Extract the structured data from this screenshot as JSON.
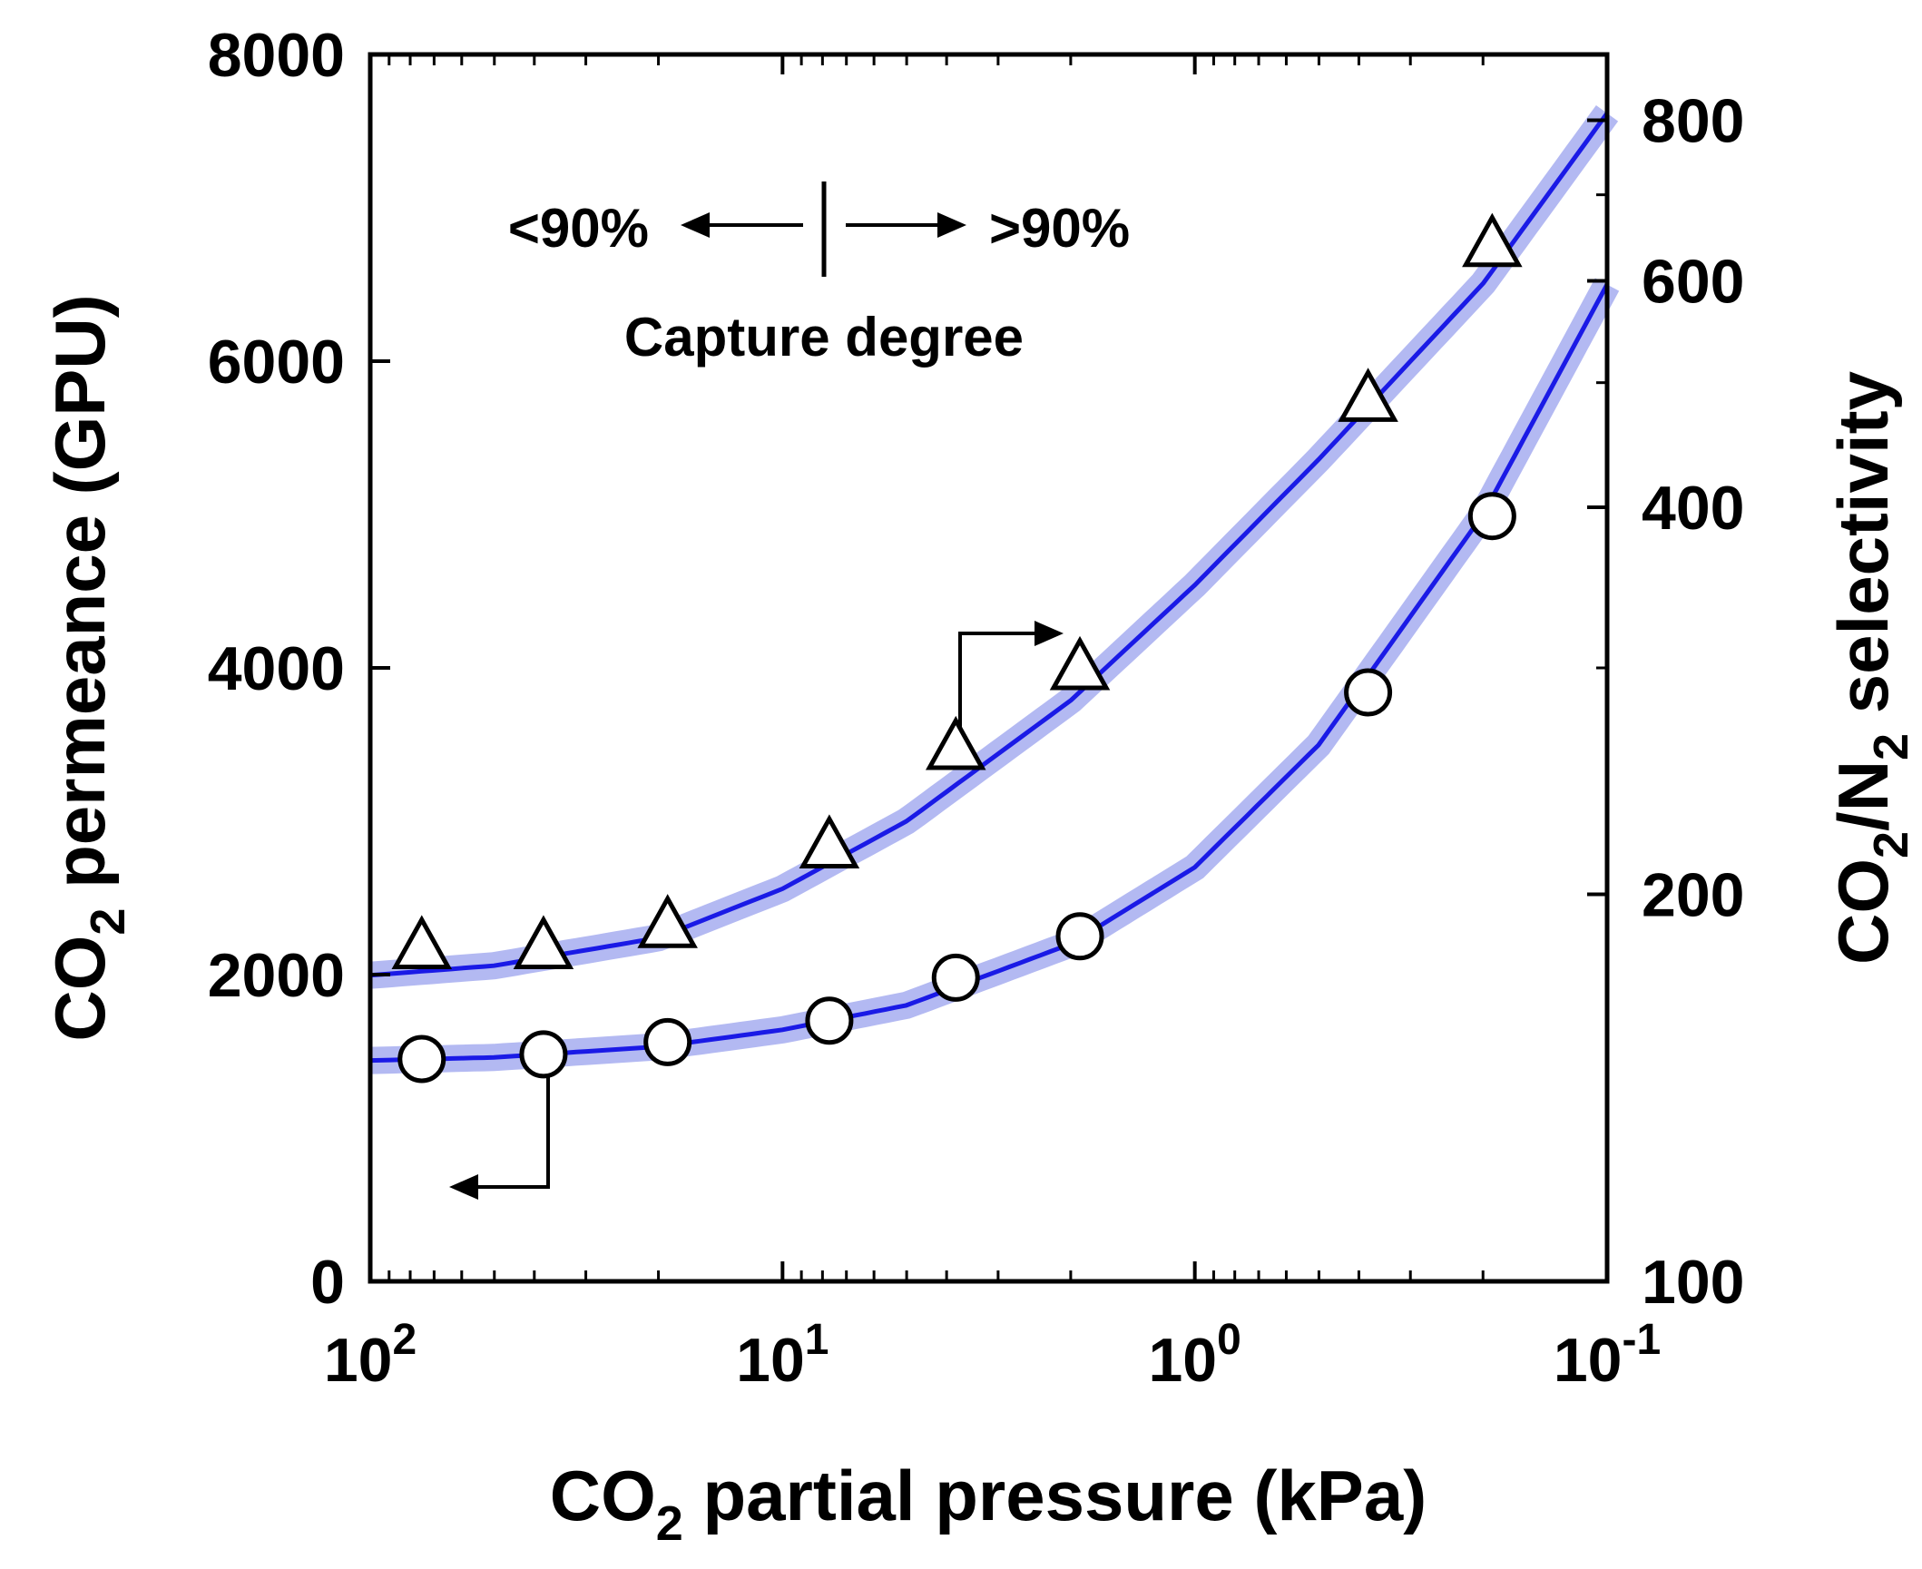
{
  "chart_data": {
    "type": "scatter",
    "xlabel": {
      "main": "CO",
      "sub": "2",
      "rest": " partial pressure (kPa)"
    },
    "ylabel_left": {
      "main": "CO",
      "sub": "2",
      "rest": " permeance (GPU)"
    },
    "ylabel_right": {
      "main": "CO",
      "sub": "2",
      "mid": "/N",
      "sub2": "2",
      "rest": " selectivity"
    },
    "x_scale": "log",
    "x_reversed": true,
    "xlim": [
      100,
      0.1
    ],
    "x_ticks": [
      {
        "value": 100,
        "base": "10",
        "exp": "2"
      },
      {
        "value": 10,
        "base": "10",
        "exp": "1"
      },
      {
        "value": 1,
        "base": "10",
        "exp": "0"
      },
      {
        "value": 0.1,
        "base": "10",
        "exp": "-1"
      }
    ],
    "ylim_left": [
      0,
      8000
    ],
    "y_ticks_left": [
      "0",
      "2000",
      "4000",
      "6000",
      "8000"
    ],
    "y_scale_right": "log",
    "ylim_right": [
      100,
      900
    ],
    "y_ticks_right": [
      "100",
      "200",
      "400",
      "600",
      "800"
    ],
    "series": [
      {
        "name": "CO2 permeance",
        "axis": "left",
        "marker": "circle",
        "x": [
          75,
          38,
          19,
          7.7,
          3.8,
          1.9,
          0.38,
          0.19
        ],
        "y": [
          1450,
          1480,
          1560,
          1700,
          1980,
          2250,
          3840,
          4990
        ]
      },
      {
        "name": "CO2/N2 selectivity",
        "axis": "right",
        "marker": "triangle",
        "x": [
          75,
          38,
          19,
          7.7,
          3.8,
          1.9,
          0.38,
          0.19
        ],
        "y": [
          182,
          182,
          189,
          218,
          260,
          300,
          485,
          640
        ]
      }
    ],
    "fits": [
      {
        "name": "permeance fit",
        "axis": "left",
        "color": "#1a1ae6",
        "band_color": "#b3b9f2",
        "x": [
          100,
          50,
          20,
          10,
          5,
          2,
          1,
          0.5,
          0.2,
          0.1
        ],
        "y": [
          1440,
          1460,
          1530,
          1640,
          1800,
          2200,
          2700,
          3500,
          5000,
          6500
        ]
      },
      {
        "name": "selectivity fit",
        "axis": "right",
        "color": "#1a1ae6",
        "band_color": "#b3b9f2",
        "x": [
          100,
          50,
          20,
          10,
          5,
          2,
          1,
          0.5,
          0.2,
          0.1
        ],
        "y": [
          173,
          176,
          185,
          202,
          228,
          283,
          348,
          436,
          597,
          810
        ]
      }
    ],
    "annotations": {
      "left_text": "<90%",
      "right_text": ">90%",
      "caption": "Capture degree"
    }
  }
}
